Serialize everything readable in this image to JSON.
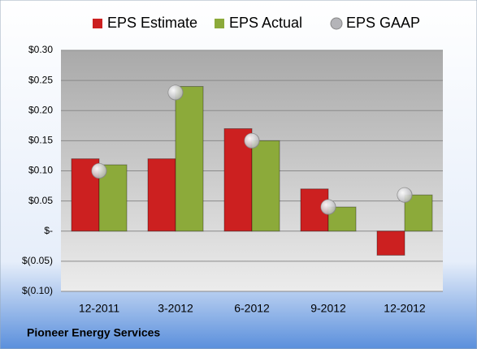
{
  "chart_data": {
    "type": "bar",
    "source": "Pioneer Energy Services",
    "categories": [
      "12-2011",
      "3-2012",
      "6-2012",
      "9-2012",
      "12-2012"
    ],
    "series": [
      {
        "name": "EPS Estimate",
        "color": "#cc2020",
        "values": [
          0.12,
          0.12,
          0.17,
          0.07,
          -0.04
        ]
      },
      {
        "name": "EPS Actual",
        "color": "#8caa3a",
        "values": [
          0.11,
          0.24,
          0.15,
          0.04,
          0.06
        ]
      },
      {
        "name": "EPS GAAP",
        "color": "#b4b4b8",
        "type": "scatter",
        "values": [
          0.1,
          0.23,
          0.15,
          0.04,
          0.06
        ]
      }
    ],
    "ylim": [
      -0.1,
      0.3
    ],
    "yticks": [
      {
        "value": -0.1,
        "label": "$(0.10)"
      },
      {
        "value": -0.05,
        "label": "$(0.05)"
      },
      {
        "value": 0,
        "label": "$-"
      },
      {
        "value": 0.05,
        "label": "$0.05"
      },
      {
        "value": 0.1,
        "label": "$0.10"
      },
      {
        "value": 0.15,
        "label": "$0.15"
      },
      {
        "value": 0.2,
        "label": "$0.20"
      },
      {
        "value": 0.25,
        "label": "$0.25"
      },
      {
        "value": 0.3,
        "label": "$0.30"
      }
    ],
    "grid": true,
    "legend": "top"
  }
}
